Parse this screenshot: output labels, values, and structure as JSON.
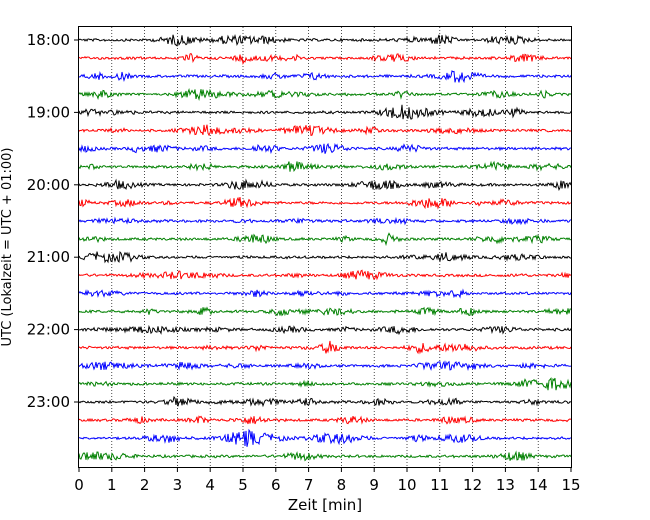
{
  "chart_data": {
    "type": "line",
    "title": "",
    "xlabel": "Zeit  [min]",
    "ylabel": "UTC (Lokalzeit = UTC + 01:00)",
    "xlim": [
      0,
      15
    ],
    "x_ticks": [
      0,
      1,
      2,
      3,
      4,
      5,
      6,
      7,
      8,
      9,
      10,
      11,
      12,
      13,
      14,
      15
    ],
    "x_tick_labels": [
      "0",
      "1",
      "2",
      "3",
      "4",
      "5",
      "6",
      "7",
      "8",
      "9",
      "10",
      "11",
      "12",
      "13",
      "14",
      "15"
    ],
    "y_tick_labels": [
      "18:00",
      "19:00",
      "20:00",
      "21:00",
      "22:00",
      "23:00"
    ],
    "grid": "vertical dotted",
    "legend": "none",
    "row_interval_minutes": 15,
    "rows_per_hour": 4,
    "start_time": "18:00",
    "end_time": "23:45",
    "colors": [
      "#000000",
      "#ff0000",
      "#0000ff",
      "#008000"
    ],
    "series": [
      {
        "time": "18:00",
        "color": "#000000"
      },
      {
        "time": "18:15",
        "color": "#ff0000"
      },
      {
        "time": "18:30",
        "color": "#0000ff"
      },
      {
        "time": "18:45",
        "color": "#008000"
      },
      {
        "time": "19:00",
        "color": "#000000"
      },
      {
        "time": "19:15",
        "color": "#ff0000"
      },
      {
        "time": "19:30",
        "color": "#0000ff"
      },
      {
        "time": "19:45",
        "color": "#008000"
      },
      {
        "time": "20:00",
        "color": "#000000"
      },
      {
        "time": "20:15",
        "color": "#ff0000"
      },
      {
        "time": "20:30",
        "color": "#0000ff"
      },
      {
        "time": "20:45",
        "color": "#008000"
      },
      {
        "time": "21:00",
        "color": "#000000"
      },
      {
        "time": "21:15",
        "color": "#ff0000"
      },
      {
        "time": "21:30",
        "color": "#0000ff"
      },
      {
        "time": "21:45",
        "color": "#008000"
      },
      {
        "time": "22:00",
        "color": "#000000"
      },
      {
        "time": "22:15",
        "color": "#ff0000"
      },
      {
        "time": "22:30",
        "color": "#0000ff"
      },
      {
        "time": "22:45",
        "color": "#008000"
      },
      {
        "time": "23:00",
        "color": "#000000"
      },
      {
        "time": "23:15",
        "color": "#ff0000"
      },
      {
        "time": "23:30",
        "color": "#0000ff"
      },
      {
        "time": "23:45",
        "color": "#008000"
      }
    ]
  }
}
